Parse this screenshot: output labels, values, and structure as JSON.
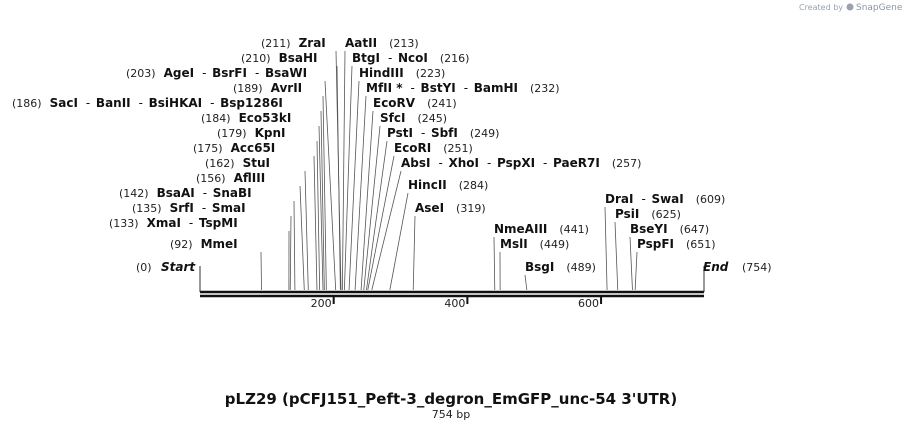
{
  "credit": {
    "created_by": "Created by",
    "brand": "SnapGene"
  },
  "plasmid": {
    "title": "pLZ29 (pCFJ151_Peft-3_degron_EmGFP_unc-54 3'UTR)",
    "size_label": "754 bp",
    "length": 754
  },
  "ticks": [
    200,
    400,
    600
  ],
  "start": {
    "pos": "(0)",
    "label": "Start"
  },
  "end": {
    "pos": "(754)",
    "label": "End"
  },
  "left_sites": [
    {
      "pos": "(211)",
      "names": [
        "ZraI"
      ]
    },
    {
      "pos": "(210)",
      "names": [
        "BsaHI"
      ]
    },
    {
      "pos": "(203)",
      "names": [
        "AgeI",
        "BsrFI",
        "BsaWI"
      ]
    },
    {
      "pos": "(189)",
      "names": [
        "AvrII"
      ]
    },
    {
      "pos": "(186)",
      "names": [
        "SacI",
        "BanII",
        "BsiHKAI",
        "Bsp1286I"
      ]
    },
    {
      "pos": "(184)",
      "names": [
        "Eco53kI"
      ]
    },
    {
      "pos": "(179)",
      "names": [
        "KpnI"
      ]
    },
    {
      "pos": "(175)",
      "names": [
        "Acc65I"
      ]
    },
    {
      "pos": "(162)",
      "names": [
        "StuI"
      ]
    },
    {
      "pos": "(156)",
      "names": [
        "AflIII"
      ]
    },
    {
      "pos": "(142)",
      "names": [
        "BsaAI",
        "SnaBI"
      ]
    },
    {
      "pos": "(135)",
      "names": [
        "SrfI",
        "SmaI"
      ]
    },
    {
      "pos": "(133)",
      "names": [
        "XmaI",
        "TspMI"
      ]
    },
    {
      "pos": "(92)",
      "names": [
        "MmeI"
      ]
    }
  ],
  "right_sites": [
    {
      "pos": "(213)",
      "names": [
        "AatII"
      ]
    },
    {
      "pos": "(216)",
      "names": [
        "BtgI",
        "NcoI"
      ]
    },
    {
      "pos": "(223)",
      "names": [
        "HindIII"
      ]
    },
    {
      "pos": "(232)",
      "names": [
        "MfII *",
        "BstYI",
        "BamHI"
      ]
    },
    {
      "pos": "(241)",
      "names": [
        "EcoRV"
      ]
    },
    {
      "pos": "(245)",
      "names": [
        "SfcI"
      ]
    },
    {
      "pos": "(249)",
      "names": [
        "PstI",
        "SbfI"
      ]
    },
    {
      "pos": "(251)",
      "names": [
        "EcoRI"
      ]
    },
    {
      "pos": "(257)",
      "names": [
        "AbsI",
        "XhoI",
        "PspXI",
        "PaeR7I"
      ]
    },
    {
      "pos": "(284)",
      "names": [
        "HincII"
      ]
    },
    {
      "pos": "(319)",
      "names": [
        "AseI"
      ]
    },
    {
      "pos": "(441)",
      "names": [
        "NmeAIII"
      ]
    },
    {
      "pos": "(449)",
      "names": [
        "MslI"
      ]
    },
    {
      "pos": "(489)",
      "names": [
        "BsgI"
      ]
    },
    {
      "pos": "(609)",
      "names": [
        "DraI",
        "SwaI"
      ]
    },
    {
      "pos": "(625)",
      "names": [
        "PsiI"
      ]
    },
    {
      "pos": "(647)",
      "names": [
        "BseYI"
      ]
    },
    {
      "pos": "(651)",
      "names": [
        "PspFI"
      ]
    }
  ]
}
